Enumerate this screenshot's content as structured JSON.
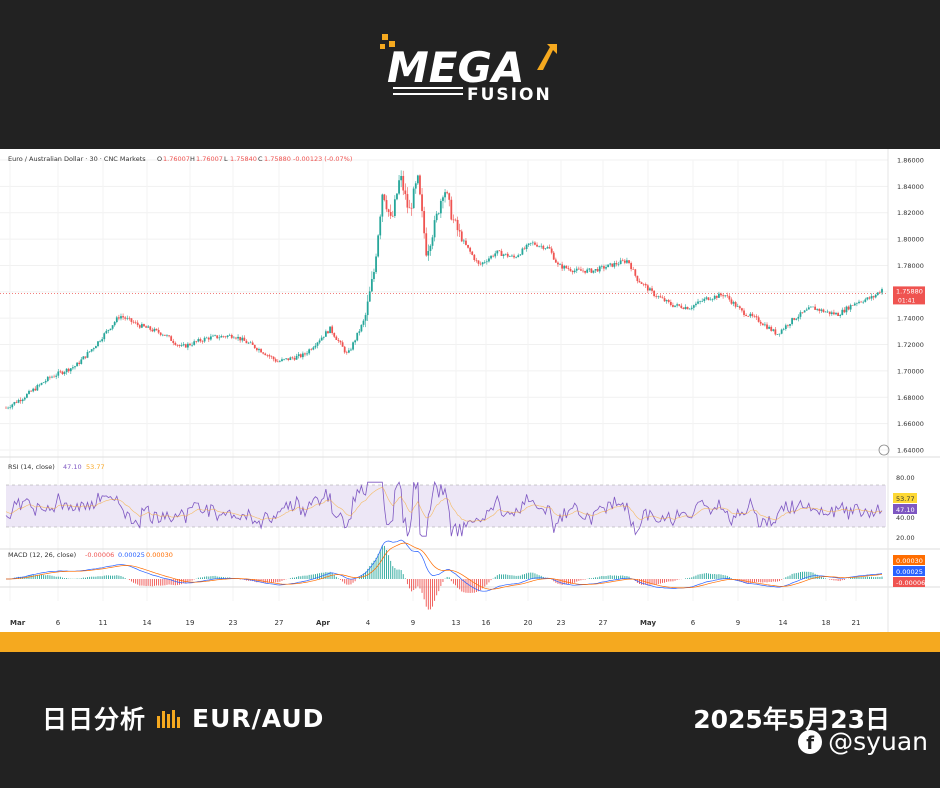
{
  "brand": {
    "logo_text": "MEGA",
    "logo_sub": "FUSION"
  },
  "chart_data": {
    "type": "candlestick",
    "title": "Euro / Australian Dollar · 30 · CNC Markets",
    "ohlc": {
      "o_label": "O",
      "o": "1.76007",
      "h_label": "H",
      "h": "1.76007",
      "l_label": "L",
      "l": "1.75840",
      "c_label": "C",
      "c": "1.75880",
      "change": "-0.00123 (-0.07%)"
    },
    "y_ticks": [
      "1.86000",
      "1.84000",
      "1.82000",
      "1.80000",
      "1.78000",
      "1.76000",
      "1.74000",
      "1.72000",
      "1.70000",
      "1.68000",
      "1.66000",
      "1.64000"
    ],
    "ylim": [
      1.64,
      1.86
    ],
    "x_ticks": [
      "Mar",
      "6",
      "11",
      "14",
      "19",
      "23",
      "27",
      "Apr",
      "4",
      "9",
      "13",
      "16",
      "20",
      "23",
      "27",
      "May",
      "6",
      "9",
      "14",
      "18",
      "21"
    ],
    "current_price": "1.75880",
    "countdown": "01:41",
    "price_path": [
      [
        0,
        1.672
      ],
      [
        2,
        1.68
      ],
      [
        5,
        1.695
      ],
      [
        8,
        1.704
      ],
      [
        10,
        1.718
      ],
      [
        13,
        1.742
      ],
      [
        15,
        1.735
      ],
      [
        18,
        1.728
      ],
      [
        20,
        1.718
      ],
      [
        23,
        1.725
      ],
      [
        26,
        1.727
      ],
      [
        29,
        1.716
      ],
      [
        31,
        1.707
      ],
      [
        34,
        1.712
      ],
      [
        37,
        1.732
      ],
      [
        39,
        1.712
      ],
      [
        41,
        1.74
      ],
      [
        42,
        1.775
      ],
      [
        43,
        1.838
      ],
      [
        44,
        1.812
      ],
      [
        45,
        1.848
      ],
      [
        46,
        1.82
      ],
      [
        47,
        1.845
      ],
      [
        48,
        1.79
      ],
      [
        49,
        1.812
      ],
      [
        50,
        1.84
      ],
      [
        51,
        1.815
      ],
      [
        52,
        1.8
      ],
      [
        54,
        1.78
      ],
      [
        56,
        1.79
      ],
      [
        58,
        1.786
      ],
      [
        60,
        1.797
      ],
      [
        62,
        1.793
      ],
      [
        63,
        1.78
      ],
      [
        65,
        1.776
      ],
      [
        67,
        1.776
      ],
      [
        69,
        1.78
      ],
      [
        71,
        1.784
      ],
      [
        72,
        1.77
      ],
      [
        74,
        1.758
      ],
      [
        76,
        1.75
      ],
      [
        78,
        1.748
      ],
      [
        80,
        1.755
      ],
      [
        82,
        1.758
      ],
      [
        84,
        1.745
      ],
      [
        86,
        1.738
      ],
      [
        88,
        1.728
      ],
      [
        90,
        1.74
      ],
      [
        92,
        1.748
      ],
      [
        94,
        1.744
      ],
      [
        95,
        1.743
      ],
      [
        97,
        1.752
      ],
      [
        99,
        1.756
      ],
      [
        100,
        1.762
      ],
      [
        101,
        1.759
      ]
    ],
    "rsi": {
      "label": "RSI (14, close)",
      "value": "47.10",
      "ma": "53.77",
      "levels": [
        "80.00",
        "40.00",
        "20.00"
      ],
      "ylim": [
        10,
        90
      ]
    },
    "macd": {
      "label": "MACD (12, 26, close)",
      "hist": "-0.00006",
      "macd": "0.00025",
      "signal": "0.00030"
    },
    "colors": {
      "up": "#26a69a",
      "down": "#ef5350",
      "rsi": "#7e57c2",
      "macd": "#2962ff",
      "signal": "#ff6d00"
    }
  },
  "footer": {
    "title": "日日分析",
    "pair": "EUR/AUD",
    "date": "2025年5月23日",
    "social": "@syuan"
  }
}
